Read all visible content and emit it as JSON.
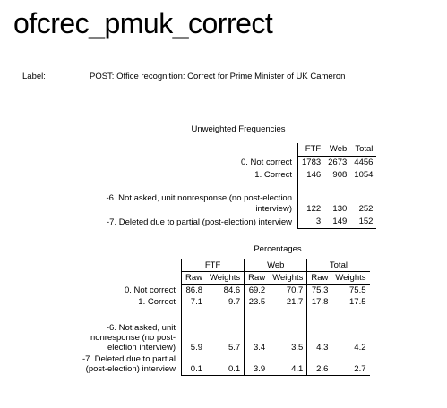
{
  "title": "ofcrec_pmuk_correct",
  "label_key": "Label:",
  "label_value": "POST: Office recognition: Correct for Prime Minister of UK Cameron",
  "unweighted": {
    "title": "Unweighted Frequencies",
    "columns": [
      "FTF",
      "Web",
      "Total"
    ],
    "rows": [
      {
        "label": "0. Not correct",
        "ftf": "1783",
        "web": "2673",
        "total": "4456"
      },
      {
        "label": "1. Correct",
        "ftf": "146",
        "web": "908",
        "total": "1054"
      },
      {
        "label": "-6. Not asked, unit nonresponse (no post-election interview)",
        "ftf": "122",
        "web": "130",
        "total": "252"
      },
      {
        "label": "-7. Deleted due to partial (post-election) interview",
        "ftf": "3",
        "web": "149",
        "total": "152"
      }
    ]
  },
  "percentages": {
    "title": "Percentages",
    "groups": [
      "FTF",
      "Web",
      "Total"
    ],
    "subcolumns": [
      "Raw",
      "Weights"
    ],
    "rows": [
      {
        "label": "0. Not correct",
        "v": [
          "86.8",
          "84.6",
          "69.2",
          "70.7",
          "75.3",
          "75.5"
        ]
      },
      {
        "label": "1. Correct",
        "v": [
          "7.1",
          "9.7",
          "23.5",
          "21.7",
          "17.8",
          "17.5"
        ]
      },
      {
        "label": "-6. Not asked, unit nonresponse (no post-election interview)",
        "v": [
          "5.9",
          "5.7",
          "3.4",
          "3.5",
          "4.3",
          "4.2"
        ]
      },
      {
        "label": "-7. Deleted due to partial (post-election) interview",
        "v": [
          "0.1",
          "0.1",
          "3.9",
          "4.1",
          "2.6",
          "2.7"
        ]
      }
    ]
  }
}
